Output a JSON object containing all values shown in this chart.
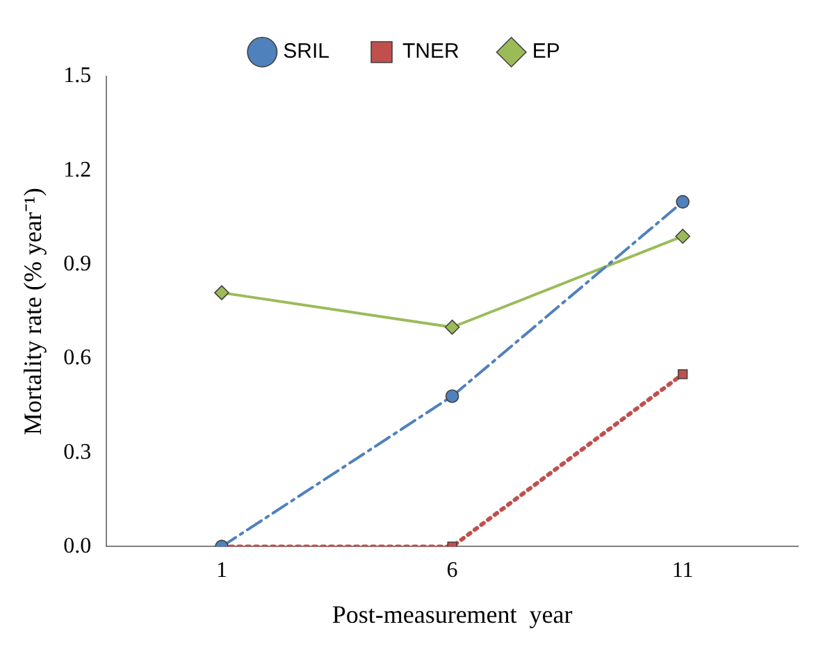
{
  "chart_data": {
    "type": "line",
    "xlabel": "Post-measurement  year",
    "ylabel": "Mortality rate (% year⁻¹)",
    "categories": [
      "1",
      "6",
      "11"
    ],
    "series": [
      {
        "name": "SRIL",
        "color": "#4f81bd",
        "values": [
          0,
          0.48,
          1.1
        ],
        "marker": "circle",
        "line_style": "dashed"
      },
      {
        "name": "TNER",
        "color": "#c0504d",
        "values": [
          0,
          0,
          0.55
        ],
        "marker": "square",
        "line_style": "dotted"
      },
      {
        "name": "EP",
        "color": "#9bbb59",
        "values": [
          0.81,
          0.7,
          0.99
        ],
        "marker": "diamond",
        "line_style": "solid"
      }
    ],
    "ylim": [
      0,
      1.5
    ],
    "yticks": [
      {
        "value": 0,
        "label": "0.0"
      },
      {
        "value": 0.3,
        "label": "0.3"
      },
      {
        "value": 0.6,
        "label": "0.6"
      },
      {
        "value": 0.9,
        "label": "0.9"
      },
      {
        "value": 1.2,
        "label": "1.2"
      },
      {
        "value": 1.5,
        "label": "1.5"
      }
    ],
    "grid": false,
    "legend": "top"
  }
}
